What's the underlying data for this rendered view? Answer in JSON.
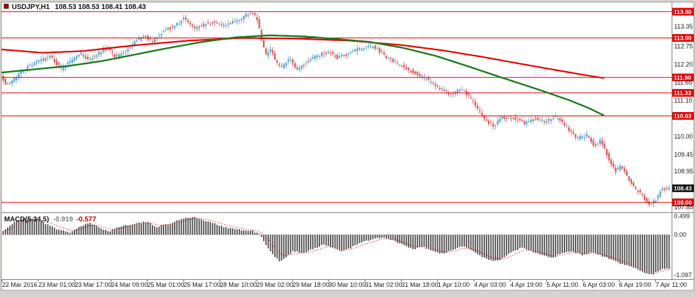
{
  "window": {
    "symbol_timeframe": "USDJPY,H1",
    "ohlc_text": "108.53 108.53 108.41 108.43"
  },
  "indicator": {
    "label": "MACD(5,34,5)",
    "value_main": "-0.919",
    "value_signal": "-0.577"
  },
  "colors": {
    "bull": "#5aa7d0",
    "bear": "#d95b5b",
    "ma_red": "#e60000",
    "ma_green": "#1f7a1f",
    "hline": "#e60000",
    "tag_red_bg": "#e60000",
    "tag_black_bg": "#141414",
    "hist": "#4d4d4d",
    "signal": "#e03030",
    "axis_text": "#1a1a1a",
    "border": "#9a9a9a"
  },
  "time_axis": {
    "labels": [
      "22 Mar 2016",
      "23 Mar 01:00",
      "23 Mar 17:00",
      "24 Mar 09:00",
      "25 Mar 01:00",
      "25 Mar 17:00",
      "28 Mar 10:00",
      "29 Mar 02:00",
      "29 Mar 18:00",
      "30 Mar 10:00",
      "31 Mar 02:00",
      "31 Mar 18:00",
      "1 Apr 10:00",
      "4 Apr 03:00",
      "4 Apr 19:00",
      "5 Apr 11:00",
      "6 Apr 03:00",
      "6 Apr 19:00",
      "7 Apr 11:00"
    ]
  },
  "chart_data": [
    {
      "type": "candlestick",
      "title": "USDJPY H1",
      "symbol": "USDJPY",
      "timeframe": "H1",
      "open": "108.53",
      "high": "108.53",
      "low": "108.41",
      "close": "108.43",
      "y_range": {
        "min": 107.76,
        "max": 114.07
      },
      "y_tick_labels": [
        "113.35",
        "112.75",
        "112.20",
        "111.65",
        "111.10",
        "110.00",
        "109.45",
        "108.95",
        "107.85"
      ],
      "horizontal_lines": [
        "113.80",
        "113.00",
        "111.80",
        "111.33",
        "110.63",
        "108.00"
      ],
      "current_price": "108.43",
      "candle_count": 300,
      "price_path": [
        [
          0,
          111.9
        ],
        [
          0.008,
          111.55
        ],
        [
          0.02,
          111.75
        ],
        [
          0.04,
          112.15
        ],
        [
          0.06,
          112.3
        ],
        [
          0.075,
          112.45
        ],
        [
          0.09,
          112.05
        ],
        [
          0.105,
          112.3
        ],
        [
          0.118,
          112.55
        ],
        [
          0.13,
          112.35
        ],
        [
          0.145,
          112.5
        ],
        [
          0.16,
          112.7
        ],
        [
          0.172,
          112.4
        ],
        [
          0.185,
          112.55
        ],
        [
          0.2,
          112.85
        ],
        [
          0.215,
          113.05
        ],
        [
          0.228,
          112.9
        ],
        [
          0.245,
          113.25
        ],
        [
          0.26,
          113.35
        ],
        [
          0.275,
          113.6
        ],
        [
          0.29,
          113.3
        ],
        [
          0.305,
          113.4
        ],
        [
          0.32,
          113.5
        ],
        [
          0.335,
          113.35
        ],
        [
          0.35,
          113.5
        ],
        [
          0.365,
          113.65
        ],
        [
          0.378,
          113.78
        ],
        [
          0.385,
          113.55
        ],
        [
          0.392,
          112.9
        ],
        [
          0.398,
          112.5
        ],
        [
          0.405,
          112.65
        ],
        [
          0.412,
          112.3
        ],
        [
          0.42,
          112.1
        ],
        [
          0.433,
          112.35
        ],
        [
          0.445,
          112
        ],
        [
          0.455,
          112.2
        ],
        [
          0.468,
          112.4
        ],
        [
          0.48,
          112.5
        ],
        [
          0.492,
          112.6
        ],
        [
          0.505,
          112.4
        ],
        [
          0.52,
          112.5
        ],
        [
          0.535,
          112.65
        ],
        [
          0.55,
          112.7
        ],
        [
          0.56,
          112.75
        ],
        [
          0.575,
          112.45
        ],
        [
          0.6,
          112.15
        ],
        [
          0.621,
          111.95
        ],
        [
          0.642,
          111.7
        ],
        [
          0.652,
          111.55
        ],
        [
          0.673,
          111.3
        ],
        [
          0.694,
          111.45
        ],
        [
          0.714,
          110.9
        ],
        [
          0.725,
          110.55
        ],
        [
          0.74,
          110.3
        ],
        [
          0.751,
          110.6
        ],
        [
          0.771,
          110.55
        ],
        [
          0.787,
          110.4
        ],
        [
          0.803,
          110.55
        ],
        [
          0.818,
          110.45
        ],
        [
          0.834,
          110.6
        ],
        [
          0.849,
          110.3
        ],
        [
          0.865,
          109.95
        ],
        [
          0.88,
          110.05
        ],
        [
          0.891,
          109.7
        ],
        [
          0.901,
          109.9
        ],
        [
          0.912,
          109.35
        ],
        [
          0.922,
          108.95
        ],
        [
          0.932,
          109.1
        ],
        [
          0.943,
          108.7
        ],
        [
          0.953,
          108.4
        ],
        [
          0.963,
          108.2
        ],
        [
          0.974,
          107.95
        ],
        [
          0.984,
          108.1
        ],
        [
          0.992,
          108.43
        ]
      ],
      "ma_red_path": [
        [
          0,
          112.65
        ],
        [
          0.06,
          112.55
        ],
        [
          0.12,
          112.6
        ],
        [
          0.2,
          112.78
        ],
        [
          0.28,
          112.92
        ],
        [
          0.36,
          113.0
        ],
        [
          0.44,
          112.98
        ],
        [
          0.52,
          112.92
        ],
        [
          0.6,
          112.78
        ],
        [
          0.66,
          112.62
        ],
        [
          0.72,
          112.42
        ],
        [
          0.78,
          112.2
        ],
        [
          0.83,
          112.02
        ],
        [
          0.87,
          111.88
        ],
        [
          0.9,
          111.78
        ]
      ],
      "ma_green_path": [
        [
          0,
          111.95
        ],
        [
          0.05,
          112.05
        ],
        [
          0.1,
          112.15
        ],
        [
          0.15,
          112.3
        ],
        [
          0.2,
          112.5
        ],
        [
          0.25,
          112.7
        ],
        [
          0.3,
          112.88
        ],
        [
          0.35,
          113.02
        ],
        [
          0.4,
          113.08
        ],
        [
          0.45,
          113.05
        ],
        [
          0.5,
          112.97
        ],
        [
          0.55,
          112.88
        ],
        [
          0.6,
          112.7
        ],
        [
          0.65,
          112.45
        ],
        [
          0.7,
          112.12
        ],
        [
          0.75,
          111.78
        ],
        [
          0.8,
          111.45
        ],
        [
          0.85,
          111.1
        ],
        [
          0.88,
          110.85
        ],
        [
          0.9,
          110.65
        ]
      ]
    },
    {
      "type": "bar",
      "title": "MACD(5,34,5)",
      "main_value": -0.919,
      "signal_value": -0.577,
      "y_tick_labels": [
        "0.499",
        "0.00",
        "-1.097"
      ],
      "y_range": {
        "min": -1.15,
        "max": 0.55
      },
      "macd_path": [
        [
          0,
          0.1
        ],
        [
          0.01,
          0.25
        ],
        [
          0.025,
          0.42
        ],
        [
          0.045,
          0.45
        ],
        [
          0.065,
          0.3
        ],
        [
          0.085,
          0.12
        ],
        [
          0.1,
          0.06
        ],
        [
          0.115,
          0.22
        ],
        [
          0.13,
          0.32
        ],
        [
          0.145,
          0.18
        ],
        [
          0.16,
          0.1
        ],
        [
          0.175,
          0.22
        ],
        [
          0.195,
          0.3
        ],
        [
          0.215,
          0.35
        ],
        [
          0.23,
          0.22
        ],
        [
          0.25,
          0.3
        ],
        [
          0.27,
          0.45
        ],
        [
          0.285,
          0.48
        ],
        [
          0.3,
          0.4
        ],
        [
          0.32,
          0.28
        ],
        [
          0.34,
          0.18
        ],
        [
          0.36,
          0.12
        ],
        [
          0.375,
          0.1
        ],
        [
          0.385,
          0.02
        ],
        [
          0.395,
          -0.3
        ],
        [
          0.405,
          -0.55
        ],
        [
          0.415,
          -0.72
        ],
        [
          0.425,
          -0.6
        ],
        [
          0.435,
          -0.45
        ],
        [
          0.45,
          -0.5
        ],
        [
          0.465,
          -0.38
        ],
        [
          0.48,
          -0.28
        ],
        [
          0.495,
          -0.35
        ],
        [
          0.51,
          -0.45
        ],
        [
          0.525,
          -0.32
        ],
        [
          0.54,
          -0.2
        ],
        [
          0.555,
          -0.12
        ],
        [
          0.57,
          -0.08
        ],
        [
          0.585,
          -0.15
        ],
        [
          0.6,
          -0.28
        ],
        [
          0.615,
          -0.4
        ],
        [
          0.63,
          -0.32
        ],
        [
          0.645,
          -0.45
        ],
        [
          0.66,
          -0.52
        ],
        [
          0.675,
          -0.42
        ],
        [
          0.69,
          -0.3
        ],
        [
          0.705,
          -0.45
        ],
        [
          0.72,
          -0.6
        ],
        [
          0.735,
          -0.72
        ],
        [
          0.75,
          -0.65
        ],
        [
          0.765,
          -0.45
        ],
        [
          0.78,
          -0.35
        ],
        [
          0.795,
          -0.45
        ],
        [
          0.81,
          -0.55
        ],
        [
          0.825,
          -0.62
        ],
        [
          0.84,
          -0.5
        ],
        [
          0.855,
          -0.45
        ],
        [
          0.87,
          -0.55
        ],
        [
          0.885,
          -0.48
        ],
        [
          0.9,
          -0.58
        ],
        [
          0.915,
          -0.7
        ],
        [
          0.93,
          -0.8
        ],
        [
          0.945,
          -0.88
        ],
        [
          0.96,
          -1.0
        ],
        [
          0.975,
          -1.08
        ],
        [
          0.985,
          -0.98
        ],
        [
          0.992,
          -0.92
        ]
      ]
    }
  ]
}
